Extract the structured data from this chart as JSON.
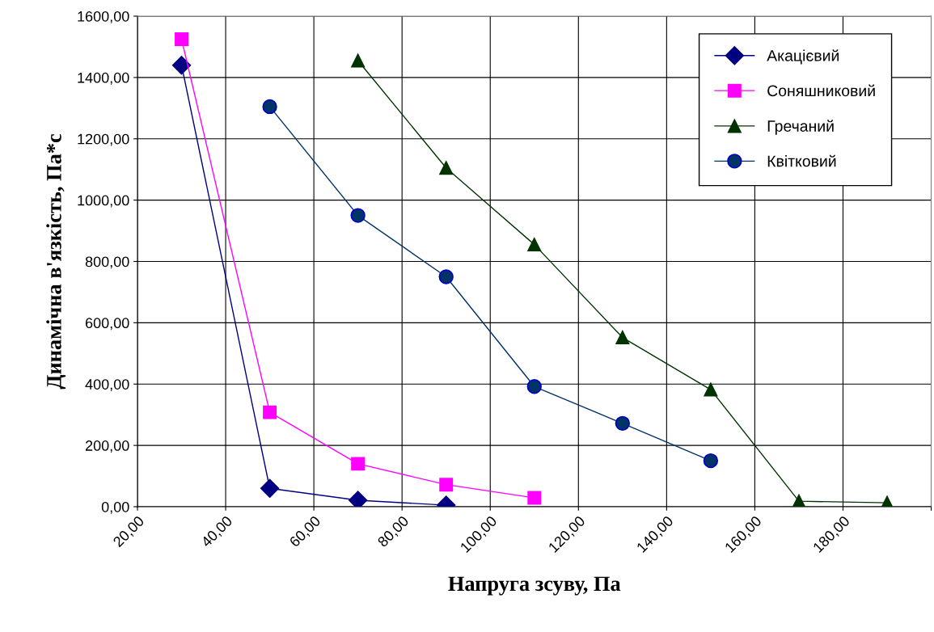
{
  "chart_data": {
    "type": "line",
    "xlabel": "Напруга зсуву, Па",
    "ylabel": "Динамічна в'язкість, Па*с",
    "xlim": [
      20,
      200
    ],
    "xticks": [
      {
        "value": 20,
        "label": "20,00"
      },
      {
        "value": 40,
        "label": "40,00"
      },
      {
        "value": 60,
        "label": "60,00"
      },
      {
        "value": 80,
        "label": "80,00"
      },
      {
        "value": 100,
        "label": "100,00"
      },
      {
        "value": 120,
        "label": "120,00"
      },
      {
        "value": 140,
        "label": "140,00"
      },
      {
        "value": 160,
        "label": "160,00"
      },
      {
        "value": 180,
        "label": "180,00"
      },
      {
        "value": 200,
        "label": null
      }
    ],
    "ylim": [
      0,
      1600
    ],
    "yticks": [
      {
        "value": 0,
        "label": "0,00"
      },
      {
        "value": 200,
        "label": "200,00"
      },
      {
        "value": 400,
        "label": "400,00"
      },
      {
        "value": 600,
        "label": "600,00"
      },
      {
        "value": 800,
        "label": "800,00"
      },
      {
        "value": 1000,
        "label": "1000,00"
      },
      {
        "value": 1200,
        "label": "1200,00"
      },
      {
        "value": 1400,
        "label": "1400,00"
      },
      {
        "value": 1600,
        "label": "1600,00"
      }
    ],
    "grid": true,
    "legend": "top right",
    "series": [
      {
        "name": "Акацієвий",
        "color": "#000080",
        "marker": "diamond",
        "x": [
          30,
          50,
          70,
          90
        ],
        "values": [
          1440,
          60,
          21,
          5
        ]
      },
      {
        "name": "Соняшниковий",
        "color": "#ff00ff",
        "marker": "square",
        "x": [
          30,
          50,
          70,
          90,
          110
        ],
        "values": [
          1525,
          308,
          140,
          72,
          29
        ]
      },
      {
        "name": "Гречаний",
        "color": "#003300",
        "marker": "triangle",
        "x": [
          70,
          90,
          110,
          130,
          150,
          170,
          190
        ],
        "values": [
          1455,
          1105,
          855,
          552,
          382,
          18,
          13
        ]
      },
      {
        "name": "Квітковий",
        "color": "#003366",
        "marker": "circle",
        "x": [
          50,
          70,
          90,
          110,
          130,
          150
        ],
        "values": [
          1305,
          950,
          750,
          392,
          272,
          150
        ]
      }
    ]
  }
}
